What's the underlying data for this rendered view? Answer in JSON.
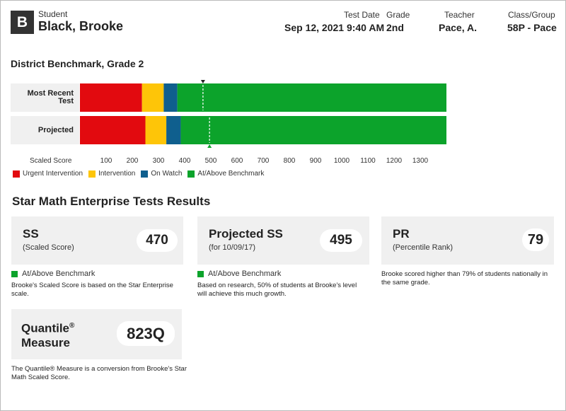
{
  "header": {
    "avatar_letter": "B",
    "student_label": "Student",
    "student_name": "Black, Brooke",
    "test_date_label": "Test Date",
    "test_date": "Sep 12, 2021 9:40 AM",
    "grade_label": "Grade",
    "grade": "2nd",
    "teacher_label": "Teacher",
    "teacher": "Pace, A.",
    "class_label": "Class/Group",
    "class": "58P - Pace"
  },
  "benchmark_title": "District Benchmark, Grade 2",
  "chart_data": {
    "type": "bar",
    "orientation": "horizontal-stacked",
    "xlabel": "Scaled Score",
    "ticks": [
      100,
      200,
      300,
      400,
      500,
      600,
      700,
      800,
      900,
      1000,
      1100,
      1200,
      1300
    ],
    "xlim": [
      0,
      1400
    ],
    "colors": {
      "urgent": "#e20a0f",
      "intervention": "#fec508",
      "on_watch": "#0f5f8e",
      "at_above": "#0ca32b"
    },
    "rows": [
      {
        "label": "Most Recent Test",
        "label_lines": [
          "Most Recent",
          "Test"
        ],
        "cut_scores": [
          237,
          320,
          372
        ],
        "marker": 470,
        "marker_position": "top"
      },
      {
        "label": "Projected",
        "label_lines": [
          "Projected"
        ],
        "cut_scores": [
          250,
          330,
          385
        ],
        "marker": 495,
        "marker_position": "bottom"
      }
    ],
    "legend": [
      {
        "key": "urgent",
        "label": "Urgent Intervention"
      },
      {
        "key": "intervention",
        "label": "Intervention"
      },
      {
        "key": "on_watch",
        "label": "On Watch"
      },
      {
        "key": "at_above",
        "label": "At/Above Benchmark"
      }
    ]
  },
  "results_title": "Star Math Enterprise Tests Results",
  "cards": {
    "ss": {
      "title": "SS",
      "subtitle": "(Scaled Score)",
      "value": "470",
      "status": "At/Above Benchmark",
      "note": "Brooke's Scaled Score is based on the Star Enterprise scale."
    },
    "projected": {
      "title": "Projected SS",
      "subtitle": "(for 10/09/17)",
      "value": "495",
      "status": "At/Above Benchmark",
      "note": "Based on research, 50% of students at Brooke's level will achieve this much growth."
    },
    "pr": {
      "title": "PR",
      "subtitle": "(Percentile Rank)",
      "value": "79",
      "note": "Brooke scored higher than 79% of students nationally in the same grade."
    },
    "quantile": {
      "title_line1": "Quantile",
      "title_reg": "®",
      "title_line2": "Measure",
      "value": "823Q",
      "note": "The Quantile® Measure is a conversion from Brooke's Star Math Scaled Score."
    }
  }
}
